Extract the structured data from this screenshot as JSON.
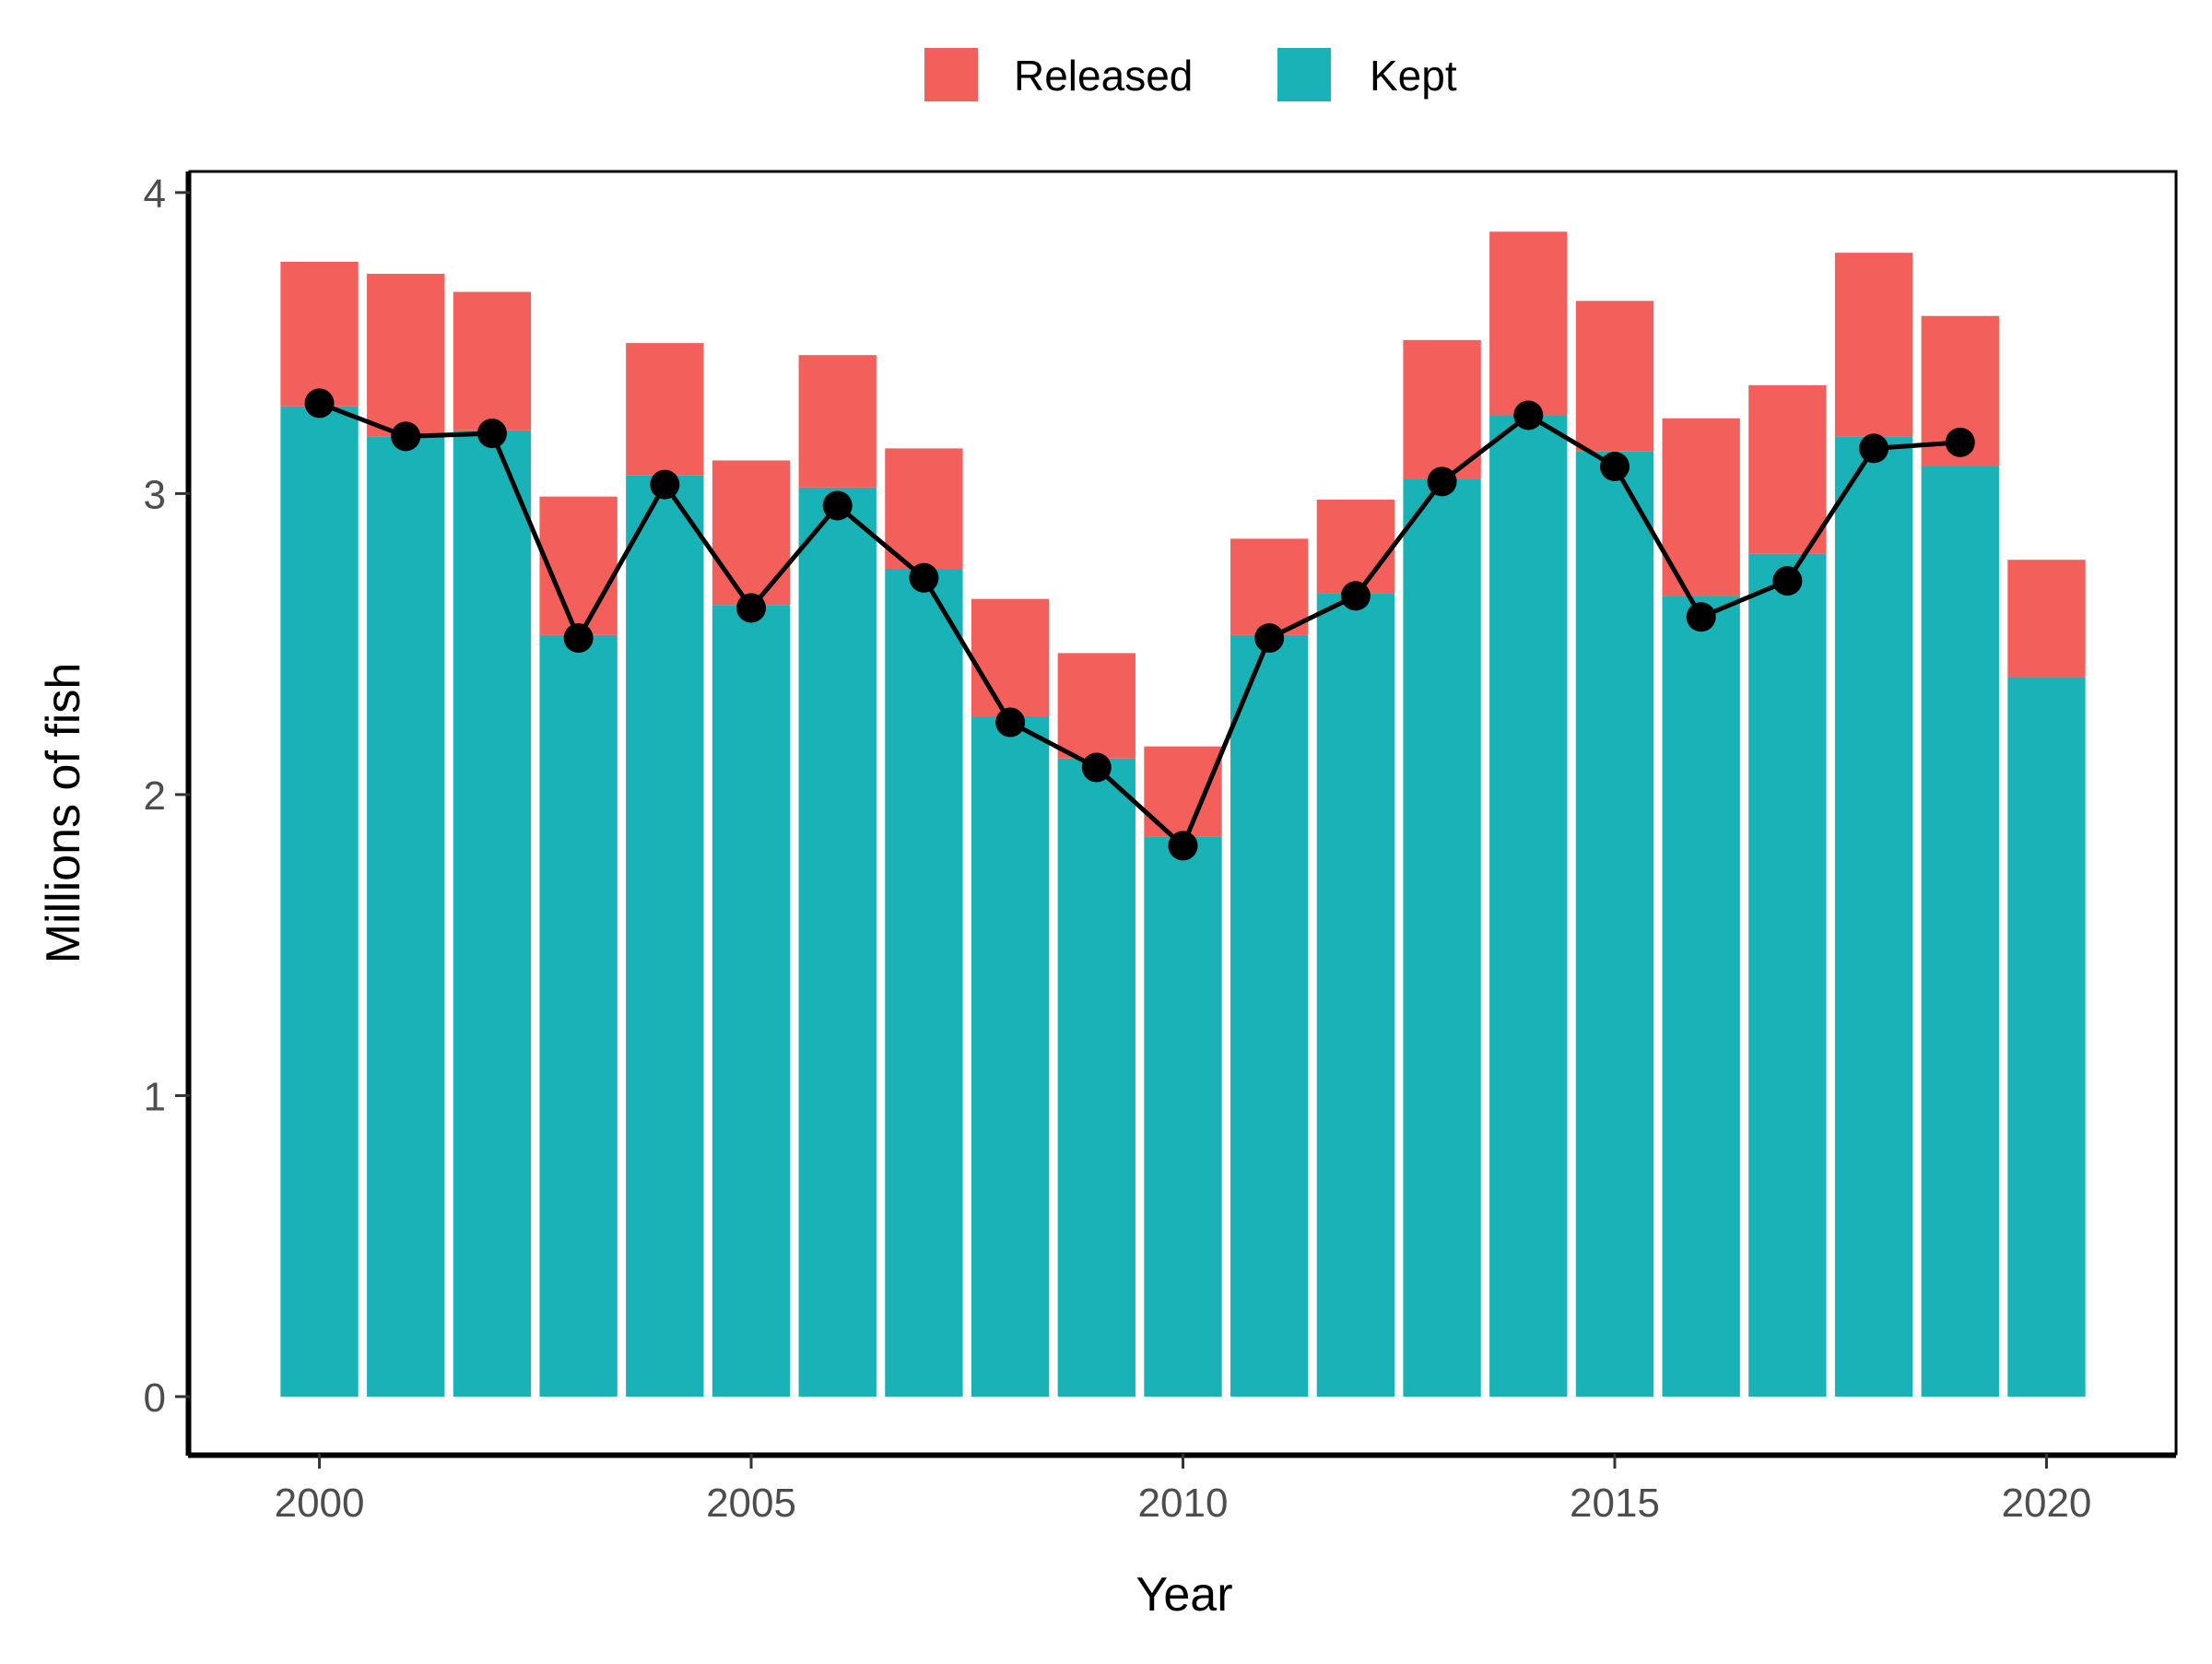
{
  "chart_data": {
    "type": "bar",
    "stacked": true,
    "xlabel": "Year",
    "ylabel": "Millions of fish",
    "xlim": [
      1998.5,
      2021.5
    ],
    "ylim": [
      -0.19,
      4.07
    ],
    "x_ticks": [
      2000,
      2005,
      2010,
      2015,
      2020
    ],
    "y_ticks": [
      0,
      1,
      2,
      3,
      4
    ],
    "grid": false,
    "legend_position": "top",
    "categories": [
      2000,
      2001,
      2002,
      2003,
      2004,
      2005,
      2006,
      2007,
      2008,
      2009,
      2010,
      2011,
      2012,
      2013,
      2014,
      2015,
      2016,
      2017,
      2018,
      2019,
      2020
    ],
    "series": [
      {
        "name": "Released",
        "color": "#F35F5B",
        "values": [
          0.48,
          0.54,
          0.46,
          0.46,
          0.44,
          0.48,
          0.44,
          0.4,
          0.39,
          0.35,
          0.3,
          0.32,
          0.31,
          0.46,
          0.61,
          0.5,
          0.59,
          0.56,
          0.61,
          0.5,
          0.39
        ]
      },
      {
        "name": "Kept",
        "color": "#19B2B6",
        "values": [
          3.29,
          3.19,
          3.21,
          2.53,
          3.06,
          2.63,
          3.02,
          2.75,
          2.26,
          2.12,
          1.86,
          2.53,
          2.67,
          3.05,
          3.26,
          3.14,
          2.66,
          2.8,
          3.19,
          3.09,
          2.39
        ]
      }
    ],
    "line": {
      "color": "#000000",
      "x": [
        2000,
        2001,
        2002,
        2003,
        2004,
        2005,
        2006,
        2007,
        2008,
        2009,
        2010,
        2011,
        2012,
        2013,
        2014,
        2015,
        2016,
        2017,
        2018,
        2019
      ],
      "values": [
        3.3,
        3.19,
        3.2,
        2.52,
        3.03,
        2.62,
        2.96,
        2.72,
        2.24,
        2.09,
        1.83,
        2.52,
        2.66,
        3.04,
        3.26,
        3.09,
        2.59,
        2.71,
        3.15,
        3.17
      ]
    }
  }
}
